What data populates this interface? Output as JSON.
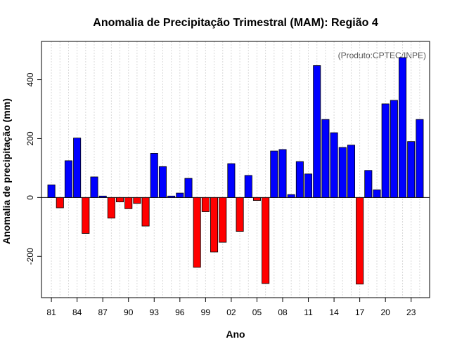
{
  "chart_data": {
    "type": "bar",
    "title": "Anomalia de Precipitação Trimestral (MAM): Região 4",
    "xlabel": "Ano",
    "ylabel": "Anomalia de precipitação (mm)",
    "source_note": "(Produto:CPTEC/INPE)",
    "ylim": [
      -340,
      530
    ],
    "yticks": [
      -200,
      0,
      200,
      400
    ],
    "xtick_labels": [
      "81",
      "84",
      "87",
      "90",
      "93",
      "96",
      "99",
      "02",
      "05",
      "08",
      "11",
      "14",
      "17",
      "20",
      "23"
    ],
    "grid": true,
    "positive_color": "#0000ff",
    "negative_color": "#ff0000",
    "categories": [
      "1981",
      "1982",
      "1983",
      "1984",
      "1985",
      "1986",
      "1987",
      "1988",
      "1989",
      "1990",
      "1991",
      "1992",
      "1993",
      "1994",
      "1995",
      "1996",
      "1997",
      "1998",
      "1999",
      "2000",
      "2001",
      "2002",
      "2003",
      "2004",
      "2005",
      "2006",
      "2007",
      "2008",
      "2009",
      "2010",
      "2011",
      "2012",
      "2013",
      "2014",
      "2015",
      "2016",
      "2017",
      "2018",
      "2019",
      "2020",
      "2021",
      "2022",
      "2023",
      "2024"
    ],
    "values": [
      43,
      -35,
      125,
      202,
      -122,
      70,
      5,
      -70,
      -15,
      -38,
      -20,
      -97,
      150,
      105,
      5,
      15,
      65,
      -237,
      -48,
      -185,
      -152,
      115,
      -115,
      75,
      -10,
      -292,
      158,
      163,
      10,
      122,
      80,
      448,
      265,
      220,
      170,
      178,
      -294,
      92,
      26,
      318,
      330,
      475,
      190,
      265
    ]
  }
}
